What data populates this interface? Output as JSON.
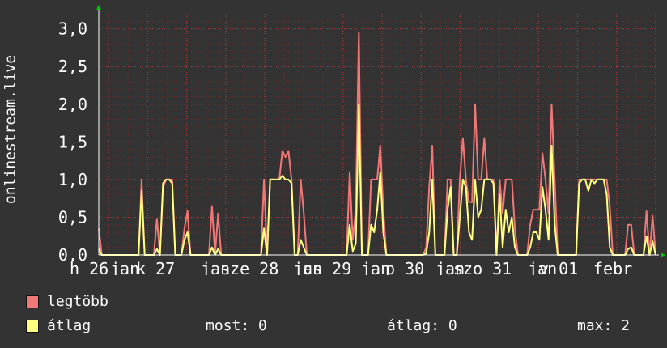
{
  "chart_data": {
    "type": "area",
    "ylabel": "onlinestream.live",
    "ylim": [
      0,
      3.2
    ],
    "y_ticks": [
      "0,0",
      "0,5",
      "1,0",
      "1,5",
      "2,0",
      "2,5",
      "3,0"
    ],
    "x_ticks": [
      "h 26",
      "jan",
      "k 27",
      "jan",
      "sze 28",
      "jan",
      "cs 29",
      "jan",
      "p 30",
      "jan",
      "szo 31",
      "jan",
      "v 01",
      "febr"
    ],
    "grid": true,
    "series": [
      {
        "name": "legtöbb",
        "color": "#f07878",
        "values": [
          0.35,
          0,
          0,
          0,
          0,
          0,
          0,
          0,
          0,
          0,
          0,
          0,
          0,
          0,
          1.0,
          0,
          0,
          0,
          0,
          0.48,
          0,
          0.9,
          1.0,
          1.0,
          1.0,
          0,
          0,
          0,
          0.35,
          0.58,
          0,
          0,
          0,
          0,
          0,
          0,
          0,
          0.65,
          0,
          0.55,
          0,
          0,
          0,
          0,
          0,
          0,
          0,
          0,
          0,
          0,
          0,
          0,
          0,
          0,
          1.0,
          0,
          1.0,
          1.0,
          1.0,
          1.0,
          1.38,
          1.3,
          1.38,
          1.0,
          0,
          0,
          1.0,
          0.55,
          0,
          0,
          0,
          0,
          0,
          0,
          0,
          0,
          0,
          0,
          0,
          0,
          0,
          0,
          1.1,
          0.2,
          0.6,
          2.95,
          0,
          0,
          0,
          1.0,
          1.0,
          1.0,
          1.45,
          0.6,
          0,
          0,
          0,
          0,
          0,
          0,
          0,
          0,
          0,
          0,
          0,
          0,
          0,
          0.1,
          0.9,
          1.45,
          0,
          0,
          0,
          0,
          1.0,
          1.0,
          0,
          0,
          1.0,
          1.55,
          1.0,
          0.7,
          0.7,
          2.0,
          1.0,
          1.0,
          1.55,
          1.0,
          1.0,
          1.0,
          0,
          1.0,
          0.55,
          1.0,
          1.0,
          1.0,
          0.35,
          0,
          0,
          0,
          0,
          0.4,
          0.6,
          0.6,
          0.6,
          1.35,
          1.0,
          0.55,
          2.0,
          1.0,
          0,
          0,
          0,
          0,
          0,
          0,
          0,
          1.0,
          1.0,
          1.0,
          1.0,
          1.0,
          1.0,
          1.0,
          1.0,
          1.0,
          1.0,
          0.65,
          0,
          0,
          0,
          0,
          0,
          0.4,
          0.4,
          0,
          0,
          0,
          0,
          0.58,
          0,
          0.52,
          0
        ]
      },
      {
        "name": "átlag",
        "color": "#ffff80",
        "values": [
          0.08,
          0,
          0,
          0,
          0,
          0,
          0,
          0,
          0,
          0,
          0,
          0,
          0,
          0,
          0.85,
          0,
          0,
          0,
          0,
          0.08,
          0,
          0.95,
          1.0,
          1.0,
          0.95,
          0,
          0,
          0,
          0.2,
          0.3,
          0,
          0,
          0,
          0,
          0,
          0,
          0,
          0.1,
          0,
          0.08,
          0,
          0,
          0,
          0,
          0,
          0,
          0,
          0,
          0,
          0,
          0,
          0,
          0,
          0,
          0.35,
          0,
          1.0,
          1.0,
          1.0,
          1.0,
          1.05,
          1.0,
          1.0,
          0.95,
          0,
          0,
          0.2,
          0.1,
          0,
          0,
          0,
          0,
          0,
          0,
          0,
          0,
          0,
          0,
          0,
          0,
          0,
          0,
          0.4,
          0.05,
          0.15,
          2.0,
          0,
          0,
          0,
          0.4,
          0.3,
          0.6,
          1.1,
          0.3,
          0,
          0,
          0,
          0,
          0,
          0,
          0,
          0,
          0,
          0,
          0,
          0,
          0,
          0.02,
          0.3,
          1.0,
          0,
          0,
          0,
          0,
          0.6,
          0.9,
          0,
          0,
          0.5,
          1.0,
          0.9,
          0.3,
          0.2,
          1.0,
          0.5,
          0.6,
          1.0,
          1.0,
          1.0,
          0.95,
          0,
          0.8,
          0.1,
          0.6,
          0.3,
          0.5,
          0.1,
          0,
          0,
          0,
          0,
          0.1,
          0.3,
          0.3,
          0.2,
          0.9,
          0.6,
          0.2,
          1.45,
          0.4,
          0,
          0,
          0,
          0,
          0,
          0,
          0,
          0.95,
          1.0,
          1.0,
          0.85,
          1.0,
          0.95,
          1.0,
          1.0,
          1.0,
          0.8,
          0.1,
          0,
          0,
          0,
          0,
          0,
          0.08,
          0.1,
          0,
          0,
          0,
          0,
          0.25,
          0,
          0.18,
          0
        ]
      }
    ]
  },
  "legend": {
    "items": [
      {
        "label": "legtöbb",
        "color": "#f07878"
      },
      {
        "label": "átlag",
        "color": "#ffff80"
      }
    ],
    "most": "most: 0",
    "atlag": "átlag: 0",
    "max": "max: 2"
  }
}
